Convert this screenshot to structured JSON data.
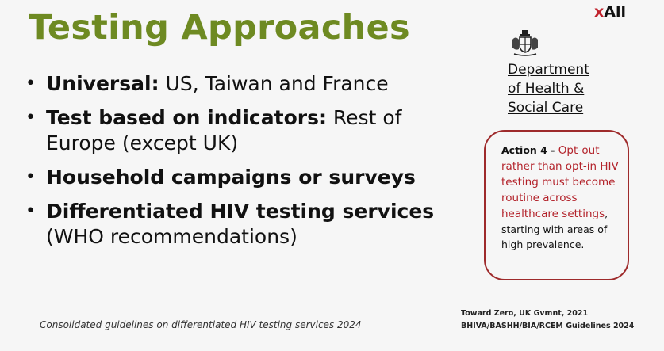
{
  "title": "Testing Approaches",
  "bullets": [
    {
      "bold": "Universal:",
      "rest": " US, Taiwan and France"
    },
    {
      "bold": "Test based on indicators:",
      "rest": " Rest of Europe (except UK)"
    },
    {
      "bold": "Household campaigns or surveys",
      "rest": ""
    },
    {
      "bold": "Differentiated HIV testing services",
      "rest": " (WHO recommendations)"
    }
  ],
  "footnote": "Consolidated guidelines on differentiated HIV testing services 2024",
  "brand": {
    "x": "x",
    "name": "All"
  },
  "department": {
    "lines": [
      "Department",
      "of Health &",
      "Social Care"
    ]
  },
  "action": {
    "label": "Action 4 - ",
    "red_text": "Opt-out rather than opt-in HIV testing must become routine across healthcare settings",
    "rest": ", starting with areas of high prevalence."
  },
  "references": [
    "Toward Zero, UK Gvmnt, 2021",
    "BHIVA/BASHH/BIA/RCEM Guidelines 2024"
  ],
  "colors": {
    "title": "#6e8a22",
    "accent_red": "#b3232b",
    "box_border": "#9e2a2b"
  },
  "icons": {
    "crest": "royal-coat-of-arms-icon",
    "bullet": "bullet-dot"
  }
}
